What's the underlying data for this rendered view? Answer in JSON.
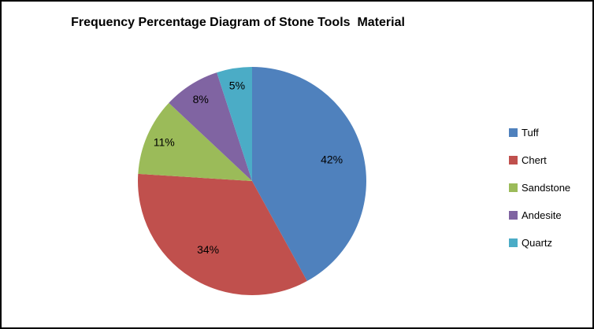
{
  "chart_data": {
    "type": "pie",
    "title": "Frequency Percentage Diagram of Stone Tools  Material",
    "categories": [
      "Tuff",
      "Chert",
      "Sandstone",
      "Andesite",
      "Quartz"
    ],
    "values": [
      42,
      34,
      11,
      8,
      5
    ],
    "labels": [
      "42%",
      "34%",
      "11%",
      "8%",
      "5%"
    ],
    "colors": [
      "#4F81BD",
      "#C0504D",
      "#9BBB59",
      "#8064A2",
      "#4BACC6"
    ],
    "start_angle_deg": 0,
    "direction": "clockwise",
    "legend_position": "right",
    "label_color": "#000000",
    "background": "#ffffff",
    "border_color": "#000000"
  }
}
